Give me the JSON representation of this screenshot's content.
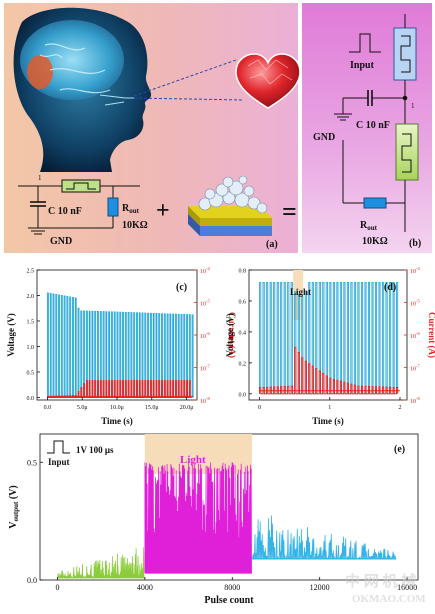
{
  "panel_a": {
    "label": "(a)",
    "circuit": {
      "node": "1",
      "capacitor": "C 10 nF",
      "resistor_main": "R",
      "resistor_sub": "out",
      "resistor_value": "10KΩ",
      "ground": "GND"
    },
    "plus": "+",
    "equals": "="
  },
  "panel_b": {
    "label": "(b)",
    "input": "Input",
    "node": "1",
    "capacitor": "C 10 nF",
    "ground": "GND",
    "resistor_main": "R",
    "resistor_sub": "out",
    "resistor_value": "10KΩ"
  },
  "chart_data": [
    {
      "id": "c",
      "label": "(c)",
      "type": "line",
      "xlabel": "Time (s)",
      "ylabel_left": "Voltage (V)",
      "ylabel_right": "Current (A)",
      "x_ticks": [
        "0.0",
        "5.0μ",
        "10.0μ",
        "15.0μ",
        "20.0μ"
      ],
      "xlim": [
        -1.5,
        21.5
      ],
      "y_left_ticks": [
        "0.0",
        "0.5",
        "1.0",
        "1.5",
        "2.0",
        "2.5"
      ],
      "ylim_left": [
        -0.05,
        2.5
      ],
      "y_right_ticks": [
        "10",
        "10",
        "10",
        "10",
        "10"
      ],
      "y_right_exponents": [
        "-4",
        "-5",
        "-6",
        "-7",
        "-8"
      ],
      "pulse_period": 0.4,
      "series": [
        {
          "color": "#29a9d8",
          "x": [
            0,
            4,
            4.5,
            21
          ],
          "values": [
            2.05,
            1.95,
            1.7,
            1.62
          ]
        },
        {
          "color": "#e8221f",
          "x": [
            0,
            4,
            5.5,
            20.5,
            20.6
          ],
          "values": [
            0.02,
            0.04,
            0.33,
            0.33,
            0.02
          ]
        }
      ]
    },
    {
      "id": "d",
      "label": "(d)",
      "type": "line",
      "xlabel": "Time (s)",
      "ylabel_left": "Voltage (V)",
      "ylabel_right": "Current (A)",
      "x_ticks": [
        "0",
        "1",
        "2"
      ],
      "xlim": [
        -0.15,
        2.1
      ],
      "y_left_ticks": [
        "0.0",
        "0.2",
        "0.4",
        "0.6",
        "0.8"
      ],
      "ylim_left": [
        -0.04,
        0.8
      ],
      "y_right_ticks": [
        "10",
        "10",
        "10",
        "10",
        "10"
      ],
      "y_right_exponents": [
        "-4",
        "-5",
        "-6",
        "-7",
        "-8"
      ],
      "annotation": "Light",
      "light_interval": [
        0.48,
        0.62
      ],
      "pulse_period": 0.05,
      "series": [
        {
          "color": "#29a9d8",
          "x": [
            0,
            0.48,
            0.5,
            0.62,
            0.7,
            2
          ],
          "values": [
            0.72,
            0.72,
            0.66,
            0.62,
            0.72,
            0.72
          ]
        },
        {
          "color": "#e8221f",
          "x": [
            0,
            0.47,
            0.5,
            0.62,
            1.0,
            1.4,
            2
          ],
          "values": [
            0.04,
            0.05,
            0.3,
            0.22,
            0.1,
            0.05,
            0.04
          ]
        }
      ]
    },
    {
      "id": "e",
      "label": "(e)",
      "type": "line",
      "xlabel": "Pulse count",
      "ylabel_main": "V",
      "ylabel_sub": "output",
      "ylabel_unit": " (V)",
      "x_ticks": [
        "0",
        "4000",
        "8000",
        "12000",
        "16000"
      ],
      "xlim": [
        -800,
        16500
      ],
      "y_ticks": [
        "0.0",
        "0.5"
      ],
      "ylim": [
        0,
        0.62
      ],
      "annotation": "Light",
      "light_interval": [
        4000,
        8900
      ],
      "input_label": "Input",
      "input_spec": "1V  100 μs",
      "series": [
        {
          "color": "#8ccc3c",
          "x_range": [
            0,
            4000
          ],
          "baseline": 0.01,
          "peak_max": [
            0.04,
            0.15
          ]
        },
        {
          "color": "#e01fd8",
          "x_range": [
            4000,
            8900
          ],
          "baseline": 0.03,
          "peak_max": [
            0.5,
            0.5
          ]
        },
        {
          "color": "#35b4e8",
          "x_range": [
            8900,
            15500
          ],
          "baseline": 0.09,
          "peak_max": [
            0.3,
            0.12
          ]
        }
      ]
    }
  ],
  "watermark": {
    "cn": "中 网 机 械",
    "en": "OKMAO.COM"
  }
}
